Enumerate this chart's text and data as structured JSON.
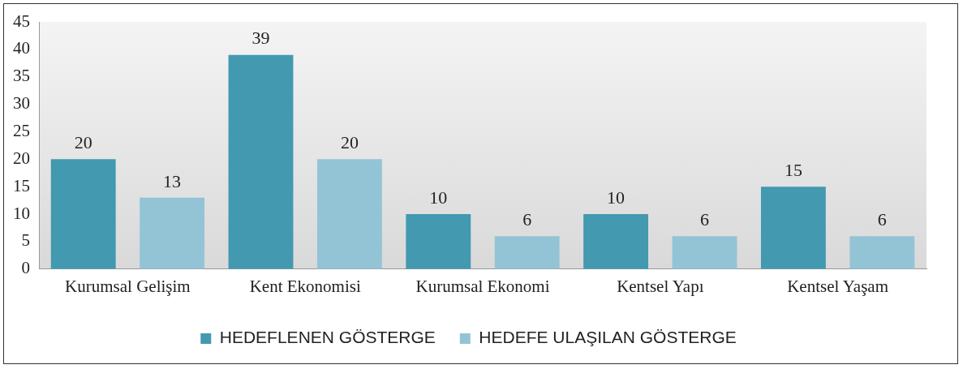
{
  "chart_data": {
    "type": "bar",
    "categories": [
      "Kurumsal Gelişim",
      "Kent Ekonomisi",
      "Kurumsal Ekonomi",
      "Kentsel Yapı",
      "Kentsel Yaşam"
    ],
    "series": [
      {
        "name": "HEDEFLENEN GÖSTERGE",
        "color": "#4299b0",
        "values": [
          20,
          39,
          10,
          10,
          15
        ]
      },
      {
        "name": "HEDEFE ULAŞILAN GÖSTERGE",
        "color": "#93c4d6",
        "values": [
          13,
          20,
          6,
          6,
          6
        ]
      }
    ],
    "ylim": [
      0,
      45
    ],
    "yticks": [
      0,
      5,
      10,
      15,
      20,
      25,
      30,
      35,
      40,
      45
    ],
    "data_labels": true,
    "legend": "bottom"
  }
}
